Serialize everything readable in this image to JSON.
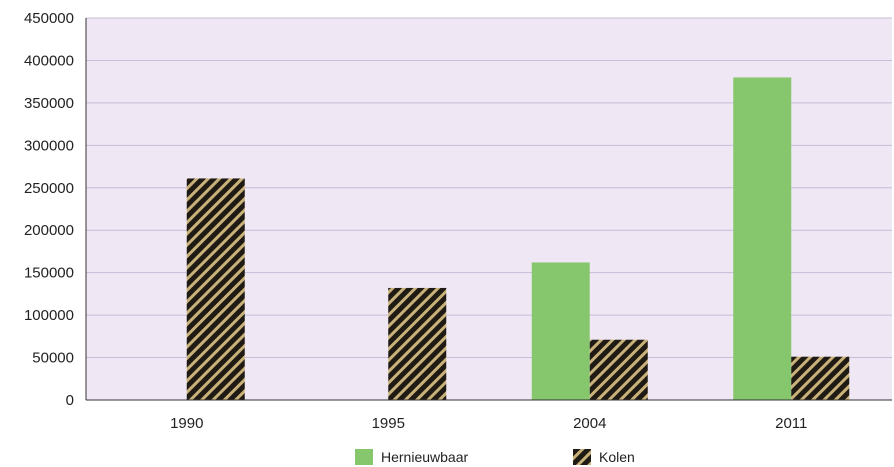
{
  "chart_data": {
    "type": "bar",
    "title": "",
    "xlabel": "",
    "ylabel": "",
    "categories": [
      "1990",
      "1995",
      "2004",
      "2011"
    ],
    "series": [
      {
        "name": "Hernieuwbaar",
        "values": [
          0,
          0,
          162000,
          380000
        ],
        "color": "#86c76d",
        "pattern": "solid"
      },
      {
        "name": "Kolen",
        "values": [
          261000,
          132000,
          71000,
          51000
        ],
        "color": "#1f1a14",
        "pattern": "hatched-tan"
      }
    ],
    "ylim": [
      0,
      450000
    ],
    "yticks": [
      0,
      50000,
      100000,
      150000,
      200000,
      250000,
      300000,
      350000,
      400000,
      450000
    ],
    "ytick_labels": [
      "0",
      "50000",
      "100000",
      "150000",
      "200000",
      "250000",
      "300000",
      "350000",
      "400000",
      "450000"
    ],
    "grid": true,
    "legend_position": "bottom-center",
    "plot_background": "#efe7f4",
    "grid_color": "#c8bcd6"
  }
}
